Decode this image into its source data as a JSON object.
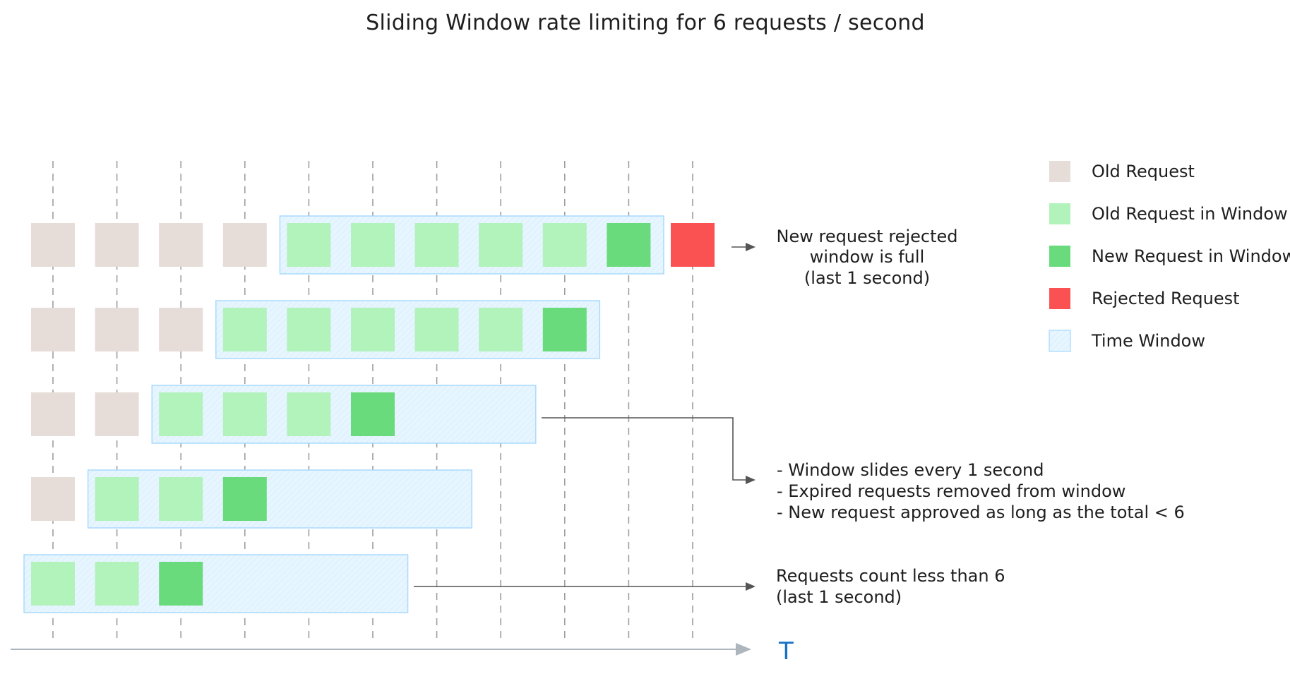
{
  "title": "Sliding Window rate limiting for 6 requests / second",
  "axis": {
    "label": "T"
  },
  "colors": {
    "old": "#e6dcd8",
    "old_in_window": "#b2f2bb",
    "new_in_window": "#69db7c",
    "rejected": "#fa5252",
    "window_fill": "#e7f5ff",
    "window_stroke": "#a5d8ff",
    "guide": "#9e9e9e",
    "arrow": "#555555"
  },
  "legend": [
    {
      "label": "Old Request",
      "kind": "old"
    },
    {
      "label": "Old Request in Window",
      "kind": "old_in_window"
    },
    {
      "label": "New Request in Window",
      "kind": "new_in_window"
    },
    {
      "label": "Rejected Request",
      "kind": "rejected"
    },
    {
      "label": "Time Window",
      "kind": "window"
    }
  ],
  "rows": [
    {
      "requests": [
        "old_in_window",
        "old_in_window",
        "new_in_window"
      ],
      "window": {
        "start": 0,
        "length": 6
      }
    },
    {
      "requests": [
        "old",
        "old_in_window",
        "old_in_window",
        "new_in_window"
      ],
      "window": {
        "start": 1,
        "length": 6
      }
    },
    {
      "requests": [
        "old",
        "old",
        "old_in_window",
        "old_in_window",
        "old_in_window",
        "new_in_window"
      ],
      "window": {
        "start": 2,
        "length": 6
      }
    },
    {
      "requests": [
        "old",
        "old",
        "old",
        "old_in_window",
        "old_in_window",
        "old_in_window",
        "old_in_window",
        "old_in_window",
        "new_in_window"
      ],
      "window": {
        "start": 3,
        "length": 6
      }
    },
    {
      "requests": [
        "old",
        "old",
        "old",
        "old",
        "old_in_window",
        "old_in_window",
        "old_in_window",
        "old_in_window",
        "old_in_window",
        "new_in_window",
        "rejected"
      ],
      "window": {
        "start": 4,
        "length": 6
      }
    }
  ],
  "notes": {
    "rejected": [
      "New request rejected",
      "window is full",
      "(last 1 second)"
    ],
    "sliding": [
      "- Window slides every 1 second",
      "- Expired requests removed from window",
      "- New request approved as long as the total < 6"
    ],
    "count": [
      "Requests count less than 6",
      "(last 1 second)"
    ]
  }
}
